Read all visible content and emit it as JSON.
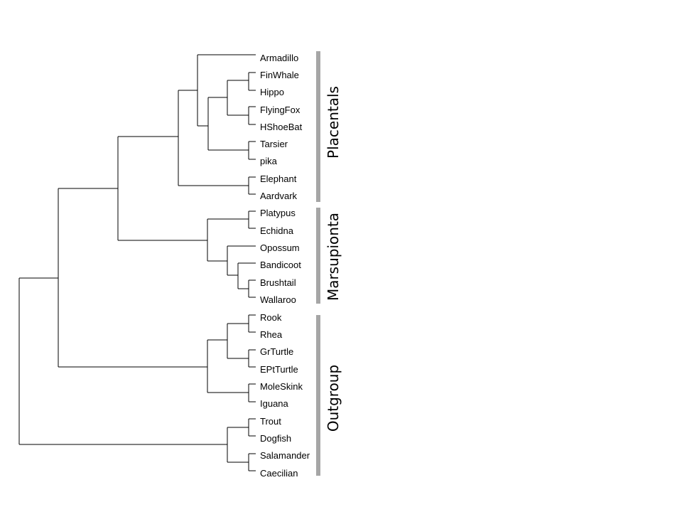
{
  "diagram": {
    "type": "phylogenetic-tree",
    "taxa": [
      "Armadillo",
      "FinWhale",
      "Hippo",
      "FlyingFox",
      "HShoeBat",
      "Tarsier",
      "pika",
      "Elephant",
      "Aardvark",
      "Platypus",
      "Echidna",
      "Opossum",
      "Bandicoot",
      "Brushtail",
      "Wallaroo",
      "Rook",
      "Rhea",
      "GrTurtle",
      "EPtTurtle",
      "MoleSkink",
      "Iguana",
      "Trout",
      "Dogfish",
      "Salamander",
      "Caecilian"
    ],
    "groups": [
      {
        "label": "Placentals",
        "members": [
          "Armadillo",
          "FinWhale",
          "Hippo",
          "FlyingFox",
          "HShoeBat",
          "Tarsier",
          "pika",
          "Elephant",
          "Aardvark"
        ]
      },
      {
        "label": "Marsupionta",
        "members": [
          "Platypus",
          "Echidna",
          "Opossum",
          "Bandicoot",
          "Brushtail",
          "Wallaroo"
        ]
      },
      {
        "label": "Outgroup",
        "members": [
          "Rook",
          "Rhea",
          "GrTurtle",
          "EPtTurtle",
          "MoleSkink",
          "Iguana",
          "Trout",
          "Dogfish",
          "Salamander",
          "Caecilian"
        ]
      }
    ],
    "colors": {
      "branch": "#000000",
      "group_bar": "#a6a6a6",
      "text": "#000000"
    }
  }
}
